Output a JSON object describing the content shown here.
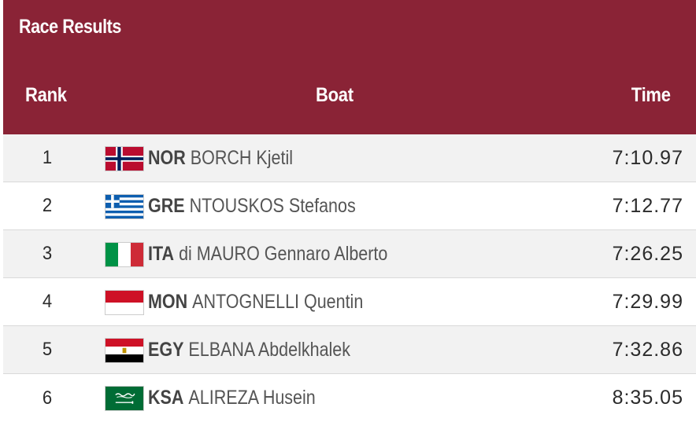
{
  "header": {
    "title": "Race Results",
    "col_rank": "Rank",
    "col_boat": "Boat",
    "col_time": "Time"
  },
  "rows": [
    {
      "rank": "1",
      "code": "NOR",
      "name": "BORCH Kjetil",
      "time": "7:10.97",
      "flag": "norway-flag-icon"
    },
    {
      "rank": "2",
      "code": "GRE",
      "name": "NTOUSKOS Stefanos",
      "time": "7:12.77",
      "flag": "greece-flag-icon"
    },
    {
      "rank": "3",
      "code": "ITA",
      "name": "di MAURO Gennaro Alberto",
      "time": "7:26.25",
      "flag": "italy-flag-icon"
    },
    {
      "rank": "4",
      "code": "MON",
      "name": "ANTOGNELLI Quentin",
      "time": "7:29.99",
      "flag": "monaco-flag-icon"
    },
    {
      "rank": "5",
      "code": "EGY",
      "name": "ELBANA Abdelkhalek",
      "time": "7:32.86",
      "flag": "egypt-flag-icon"
    },
    {
      "rank": "6",
      "code": "KSA",
      "name": "ALIREZA Husein",
      "time": "8:35.05",
      "flag": "saudi-arabia-flag-icon"
    }
  ],
  "colors": {
    "banner": "#8a2336",
    "row_alt": "#f2f2f2"
  }
}
